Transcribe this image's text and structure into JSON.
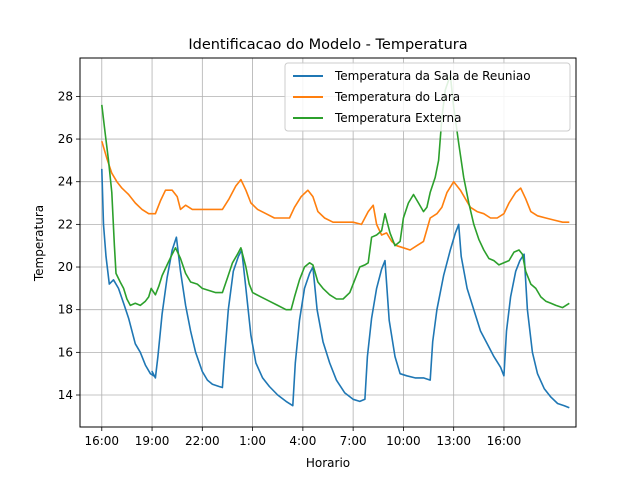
{
  "chart_data": {
    "type": "line",
    "title": "Identificacao do Modelo - Temperatura",
    "xlabel": "Horario",
    "ylabel": "Temperatura",
    "x_ticks": [
      {
        "hours": 0,
        "label": "16:00"
      },
      {
        "hours": 3,
        "label": "19:00"
      },
      {
        "hours": 6,
        "label": "22:00"
      },
      {
        "hours": 9,
        "label": "1:00"
      },
      {
        "hours": 12,
        "label": "4:00"
      },
      {
        "hours": 15,
        "label": "7:00"
      },
      {
        "hours": 18,
        "label": "10:00"
      },
      {
        "hours": 21,
        "label": "13:00"
      },
      {
        "hours": 24,
        "label": "16:00"
      }
    ],
    "y_ticks": [
      14,
      16,
      18,
      20,
      22,
      24,
      26,
      28
    ],
    "xlim": [
      -1.3,
      28.3
    ],
    "ylim": [
      12.5,
      29.8
    ],
    "grid": true,
    "legend_position": "top-right",
    "series": [
      {
        "name": "Temperatura da Sala de Reuniao",
        "color": "#1f77b4",
        "points": [
          [
            0.0,
            24.6
          ],
          [
            0.1,
            22.0
          ],
          [
            0.25,
            20.5
          ],
          [
            0.45,
            19.2
          ],
          [
            0.7,
            19.4
          ],
          [
            1.0,
            19.0
          ],
          [
            1.3,
            18.3
          ],
          [
            1.6,
            17.6
          ],
          [
            2.0,
            16.4
          ],
          [
            2.3,
            16.0
          ],
          [
            2.6,
            15.4
          ],
          [
            2.9,
            15.0
          ],
          [
            3.1,
            14.9
          ],
          [
            3.0,
            15.1
          ],
          [
            3.2,
            14.8
          ],
          [
            3.35,
            15.8
          ],
          [
            3.6,
            17.8
          ],
          [
            3.9,
            19.5
          ],
          [
            4.2,
            20.8
          ],
          [
            4.45,
            21.4
          ],
          [
            4.7,
            19.8
          ],
          [
            5.0,
            18.2
          ],
          [
            5.3,
            17.0
          ],
          [
            5.6,
            16.0
          ],
          [
            6.0,
            15.1
          ],
          [
            6.3,
            14.7
          ],
          [
            6.6,
            14.5
          ],
          [
            7.0,
            14.4
          ],
          [
            7.2,
            14.35
          ],
          [
            7.3,
            15.5
          ],
          [
            7.55,
            18.0
          ],
          [
            7.85,
            19.8
          ],
          [
            8.15,
            20.5
          ],
          [
            8.35,
            20.8
          ],
          [
            8.6,
            19.0
          ],
          [
            8.9,
            16.8
          ],
          [
            9.2,
            15.5
          ],
          [
            9.6,
            14.8
          ],
          [
            10.0,
            14.4
          ],
          [
            10.5,
            14.0
          ],
          [
            11.0,
            13.7
          ],
          [
            11.4,
            13.5
          ],
          [
            11.55,
            15.5
          ],
          [
            11.8,
            17.5
          ],
          [
            12.1,
            19.0
          ],
          [
            12.4,
            19.7
          ],
          [
            12.6,
            20.0
          ],
          [
            12.85,
            18.0
          ],
          [
            13.2,
            16.5
          ],
          [
            13.6,
            15.5
          ],
          [
            14.0,
            14.7
          ],
          [
            14.5,
            14.1
          ],
          [
            15.0,
            13.8
          ],
          [
            15.4,
            13.7
          ],
          [
            15.7,
            13.8
          ],
          [
            15.85,
            15.8
          ],
          [
            16.1,
            17.6
          ],
          [
            16.4,
            19.0
          ],
          [
            16.7,
            19.9
          ],
          [
            16.9,
            20.3
          ],
          [
            17.15,
            17.5
          ],
          [
            17.5,
            15.8
          ],
          [
            17.8,
            15.0
          ],
          [
            18.2,
            14.9
          ],
          [
            18.7,
            14.8
          ],
          [
            19.2,
            14.8
          ],
          [
            19.6,
            14.7
          ],
          [
            19.75,
            16.5
          ],
          [
            20.0,
            18.0
          ],
          [
            20.4,
            19.6
          ],
          [
            20.8,
            20.8
          ],
          [
            21.1,
            21.6
          ],
          [
            21.3,
            22.0
          ],
          [
            21.45,
            20.5
          ],
          [
            21.8,
            19.0
          ],
          [
            22.2,
            18.0
          ],
          [
            22.6,
            17.0
          ],
          [
            23.0,
            16.4
          ],
          [
            23.4,
            15.8
          ],
          [
            23.8,
            15.3
          ],
          [
            24.0,
            14.9
          ],
          [
            24.15,
            17.0
          ],
          [
            24.4,
            18.6
          ],
          [
            24.7,
            19.8
          ],
          [
            24.95,
            20.3
          ],
          [
            25.2,
            20.6
          ],
          [
            25.4,
            18.0
          ],
          [
            25.7,
            16.0
          ],
          [
            26.0,
            15.0
          ],
          [
            26.4,
            14.3
          ],
          [
            26.8,
            13.9
          ],
          [
            27.2,
            13.6
          ],
          [
            27.6,
            13.5
          ],
          [
            27.9,
            13.4
          ]
        ]
      },
      {
        "name": "Temperatura do Lara",
        "color": "#ff7f0e",
        "points": [
          [
            0.0,
            25.9
          ],
          [
            0.3,
            25.1
          ],
          [
            0.6,
            24.4
          ],
          [
            0.9,
            24.0
          ],
          [
            1.2,
            23.7
          ],
          [
            1.6,
            23.4
          ],
          [
            2.0,
            23.0
          ],
          [
            2.4,
            22.7
          ],
          [
            2.8,
            22.5
          ],
          [
            3.2,
            22.5
          ],
          [
            3.5,
            23.1
          ],
          [
            3.8,
            23.6
          ],
          [
            4.2,
            23.6
          ],
          [
            4.5,
            23.3
          ],
          [
            4.7,
            22.7
          ],
          [
            5.0,
            22.9
          ],
          [
            5.4,
            22.7
          ],
          [
            6.0,
            22.7
          ],
          [
            6.6,
            22.7
          ],
          [
            7.2,
            22.7
          ],
          [
            7.6,
            23.2
          ],
          [
            8.0,
            23.8
          ],
          [
            8.3,
            24.1
          ],
          [
            8.6,
            23.6
          ],
          [
            8.9,
            23.0
          ],
          [
            9.3,
            22.7
          ],
          [
            9.8,
            22.5
          ],
          [
            10.3,
            22.3
          ],
          [
            10.8,
            22.3
          ],
          [
            11.2,
            22.3
          ],
          [
            11.5,
            22.8
          ],
          [
            11.9,
            23.3
          ],
          [
            12.3,
            23.6
          ],
          [
            12.6,
            23.3
          ],
          [
            12.9,
            22.6
          ],
          [
            13.3,
            22.3
          ],
          [
            13.8,
            22.1
          ],
          [
            14.4,
            22.1
          ],
          [
            15.0,
            22.1
          ],
          [
            15.5,
            22.0
          ],
          [
            15.9,
            22.6
          ],
          [
            16.2,
            22.9
          ],
          [
            16.4,
            22.0
          ],
          [
            16.7,
            21.5
          ],
          [
            17.0,
            21.6
          ],
          [
            17.3,
            21.2
          ],
          [
            17.6,
            21.0
          ],
          [
            18.0,
            20.9
          ],
          [
            18.4,
            20.8
          ],
          [
            18.8,
            21.0
          ],
          [
            19.2,
            21.2
          ],
          [
            19.6,
            22.3
          ],
          [
            20.0,
            22.5
          ],
          [
            20.3,
            22.8
          ],
          [
            20.6,
            23.5
          ],
          [
            21.0,
            24.0
          ],
          [
            21.4,
            23.6
          ],
          [
            21.7,
            23.2
          ],
          [
            22.0,
            22.8
          ],
          [
            22.4,
            22.6
          ],
          [
            22.8,
            22.5
          ],
          [
            23.2,
            22.3
          ],
          [
            23.6,
            22.3
          ],
          [
            24.0,
            22.5
          ],
          [
            24.3,
            23.0
          ],
          [
            24.7,
            23.5
          ],
          [
            25.0,
            23.7
          ],
          [
            25.3,
            23.2
          ],
          [
            25.6,
            22.6
          ],
          [
            26.0,
            22.4
          ],
          [
            26.5,
            22.3
          ],
          [
            27.0,
            22.2
          ],
          [
            27.5,
            22.1
          ],
          [
            27.9,
            22.1
          ]
        ]
      },
      {
        "name": "Temperatura Externa",
        "color": "#2ca02c",
        "points": [
          [
            0.0,
            27.6
          ],
          [
            0.2,
            26.3
          ],
          [
            0.4,
            25.0
          ],
          [
            0.6,
            23.5
          ],
          [
            0.75,
            21.0
          ],
          [
            0.85,
            19.7
          ],
          [
            1.1,
            19.3
          ],
          [
            1.3,
            19.0
          ],
          [
            1.5,
            18.5
          ],
          [
            1.7,
            18.2
          ],
          [
            2.0,
            18.3
          ],
          [
            2.3,
            18.2
          ],
          [
            2.6,
            18.4
          ],
          [
            2.8,
            18.6
          ],
          [
            2.95,
            19.0
          ],
          [
            3.2,
            18.7
          ],
          [
            3.4,
            19.1
          ],
          [
            3.6,
            19.6
          ],
          [
            3.9,
            20.1
          ],
          [
            4.2,
            20.6
          ],
          [
            4.4,
            20.9
          ],
          [
            4.7,
            20.4
          ],
          [
            5.0,
            19.7
          ],
          [
            5.3,
            19.3
          ],
          [
            5.7,
            19.2
          ],
          [
            6.0,
            19.0
          ],
          [
            6.4,
            18.9
          ],
          [
            6.8,
            18.8
          ],
          [
            7.2,
            18.8
          ],
          [
            7.5,
            19.5
          ],
          [
            7.8,
            20.2
          ],
          [
            8.1,
            20.6
          ],
          [
            8.3,
            20.9
          ],
          [
            8.6,
            20.0
          ],
          [
            8.8,
            19.2
          ],
          [
            9.0,
            18.8
          ],
          [
            9.5,
            18.6
          ],
          [
            10.0,
            18.4
          ],
          [
            10.5,
            18.2
          ],
          [
            11.0,
            18.0
          ],
          [
            11.3,
            18.0
          ],
          [
            11.5,
            18.6
          ],
          [
            11.8,
            19.4
          ],
          [
            12.1,
            20.0
          ],
          [
            12.4,
            20.2
          ],
          [
            12.6,
            20.1
          ],
          [
            12.9,
            19.3
          ],
          [
            13.2,
            19.0
          ],
          [
            13.6,
            18.7
          ],
          [
            14.0,
            18.5
          ],
          [
            14.4,
            18.5
          ],
          [
            14.8,
            18.8
          ],
          [
            15.1,
            19.4
          ],
          [
            15.4,
            20.0
          ],
          [
            15.7,
            20.1
          ],
          [
            15.9,
            20.2
          ],
          [
            16.1,
            21.4
          ],
          [
            16.4,
            21.5
          ],
          [
            16.7,
            21.7
          ],
          [
            16.9,
            22.5
          ],
          [
            17.2,
            21.6
          ],
          [
            17.5,
            21.0
          ],
          [
            17.8,
            21.2
          ],
          [
            18.0,
            22.3
          ],
          [
            18.3,
            23.0
          ],
          [
            18.6,
            23.4
          ],
          [
            18.9,
            23.0
          ],
          [
            19.2,
            22.6
          ],
          [
            19.4,
            22.8
          ],
          [
            19.6,
            23.5
          ],
          [
            19.9,
            24.2
          ],
          [
            20.1,
            25.0
          ],
          [
            20.3,
            27.0
          ],
          [
            20.5,
            28.3
          ],
          [
            20.8,
            29.0
          ],
          [
            21.0,
            27.5
          ],
          [
            21.3,
            25.8
          ],
          [
            21.6,
            24.2
          ],
          [
            21.9,
            23.0
          ],
          [
            22.2,
            22.0
          ],
          [
            22.5,
            21.3
          ],
          [
            22.8,
            20.8
          ],
          [
            23.1,
            20.4
          ],
          [
            23.4,
            20.3
          ],
          [
            23.7,
            20.1
          ],
          [
            24.0,
            20.2
          ],
          [
            24.3,
            20.3
          ],
          [
            24.6,
            20.7
          ],
          [
            24.9,
            20.8
          ],
          [
            25.1,
            20.6
          ],
          [
            25.3,
            19.8
          ],
          [
            25.6,
            19.2
          ],
          [
            25.9,
            19.0
          ],
          [
            26.2,
            18.6
          ],
          [
            26.5,
            18.4
          ],
          [
            26.8,
            18.3
          ],
          [
            27.1,
            18.2
          ],
          [
            27.5,
            18.1
          ],
          [
            27.9,
            18.3
          ]
        ]
      }
    ]
  }
}
